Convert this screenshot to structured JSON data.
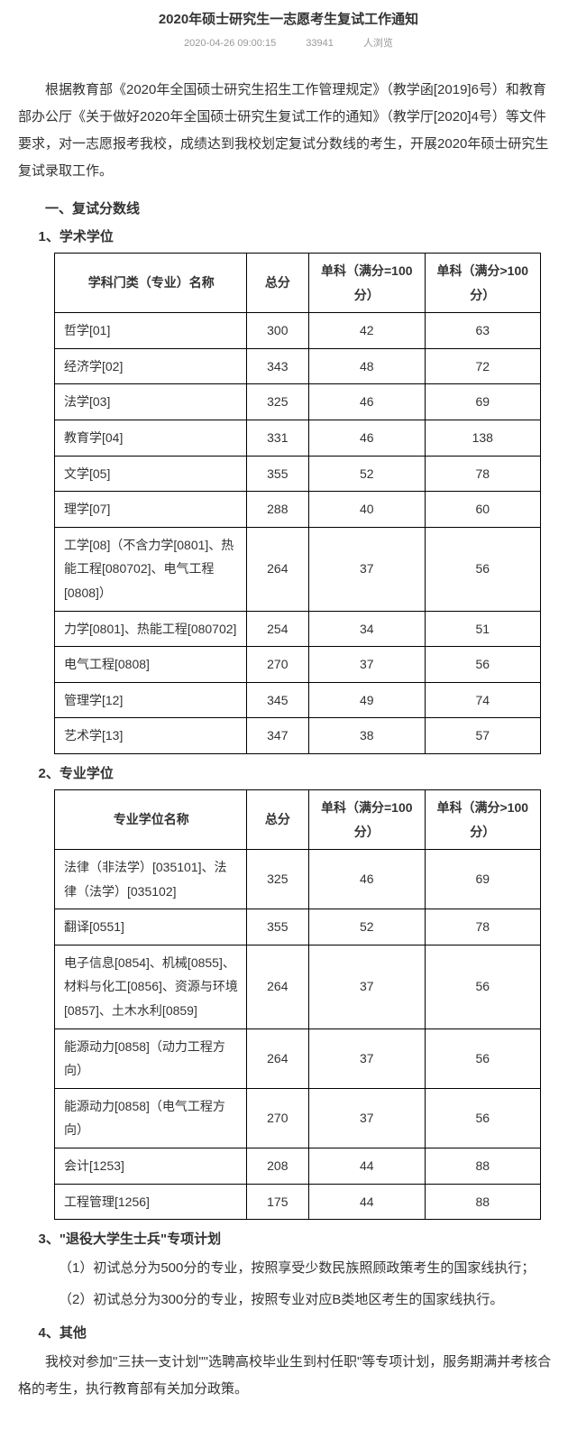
{
  "title": "2020年硕士研究生一志愿考生复试工作通知",
  "meta": {
    "datetime": "2020-04-26 09:00:15",
    "views": "33941",
    "views_suffix": "人浏览"
  },
  "intro": "根据教育部《2020年全国硕士研究生招生工作管理规定》（教学函[2019]6号）和教育部办公厅《关于做好2020年全国硕士研究生复试工作的通知》（教学厅[2020]4号）等文件要求，对一志愿报考我校，成绩达到我校划定复试分数线的考生，开展2020年硕士研究生复试录取工作。",
  "section1": {
    "heading": "一、复试分数线",
    "sub1": {
      "heading": "1、学术学位",
      "table": {
        "columns": [
          "学科门类（专业）名称",
          "总分",
          "单科（满分=100分）",
          "单科（满分>100分）"
        ],
        "rows": [
          [
            "哲学[01]",
            "300",
            "42",
            "63"
          ],
          [
            "经济学[02]",
            "343",
            "48",
            "72"
          ],
          [
            "法学[03]",
            "325",
            "46",
            "69"
          ],
          [
            "教育学[04]",
            "331",
            "46",
            "138"
          ],
          [
            "文学[05]",
            "355",
            "52",
            "78"
          ],
          [
            "理学[07]",
            "288",
            "40",
            "60"
          ],
          [
            "工学[08]（不含力学[0801]、热能工程[080702]、电气工程[0808]）",
            "264",
            "37",
            "56"
          ],
          [
            "力学[0801]、热能工程[080702]",
            "254",
            "34",
            "51"
          ],
          [
            "电气工程[0808]",
            "270",
            "37",
            "56"
          ],
          [
            "管理学[12]",
            "345",
            "49",
            "74"
          ],
          [
            "艺术学[13]",
            "347",
            "38",
            "57"
          ]
        ]
      }
    },
    "sub2": {
      "heading": "2、专业学位",
      "table": {
        "columns": [
          "专业学位名称",
          "总分",
          "单科（满分=100分）",
          "单科（满分>100分）"
        ],
        "rows": [
          [
            "法律（非法学）[035101]、法律（法学）[035102]",
            "325",
            "46",
            "69"
          ],
          [
            "翻译[0551]",
            "355",
            "52",
            "78"
          ],
          [
            "电子信息[0854]、机械[0855]、材料与化工[0856]、资源与环境[0857]、土木水利[0859]",
            "264",
            "37",
            "56"
          ],
          [
            "能源动力[0858]（动力工程方向）",
            "264",
            "37",
            "56"
          ],
          [
            "能源动力[0858]（电气工程方向）",
            "270",
            "37",
            "56"
          ],
          [
            "会计[1253]",
            "208",
            "44",
            "88"
          ],
          [
            "工程管理[1256]",
            "175",
            "44",
            "88"
          ]
        ]
      }
    },
    "sub3": {
      "heading": "3、\"退役大学生士兵\"专项计划",
      "p1": "（1）初试总分为500分的专业，按照享受少数民族照顾政策考生的国家线执行；",
      "p2": "（2）初试总分为300分的专业，按照专业对应B类地区考生的国家线执行。"
    },
    "sub4": {
      "heading": "4、其他",
      "p1": "我校对参加\"三扶一支计划\"\"选聘高校毕业生到村任职\"等专项计划，服务期满并考核合格的考生，执行教育部有关加分政策。"
    }
  }
}
